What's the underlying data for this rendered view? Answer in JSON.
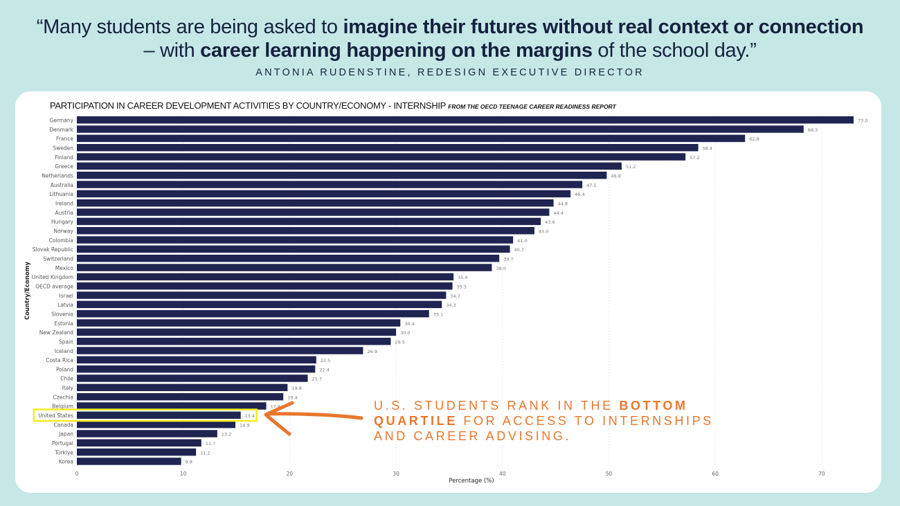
{
  "quote": {
    "open_mark": "“",
    "part1": "Many students are being asked to ",
    "bold1": "imagine their futures without real context or connection",
    "part2": " – with ",
    "bold2": "career learning happening on the margins",
    "part3": " of the school day.”"
  },
  "attribution": "ANTONIA RUDENSTINE, REDESIGN EXECUTIVE DIRECTOR",
  "chart_header": {
    "title": "PARTICIPATION IN CAREER DEVELOPMENT ACTIVITIES BY COUNTRY/ECONOMY - INTERNSHIP",
    "source": "FROM THE OECD TEENAGE CAREER READINESS REPORT"
  },
  "callout": {
    "line1_normal": "U.S. STUDENTS RANK IN THE ",
    "line1_bold": "BOTTOM",
    "line2_bold": "QUARTILE",
    "line2_normal": " FOR ACCESS TO INTERNSHIPS",
    "line3": "AND CAREER ADVISING."
  },
  "colors": {
    "bar": "#1f2550",
    "highlight_box": "#f2ec1f",
    "callout": "#e8772e",
    "background": "#c5e8e7"
  },
  "chart_data": {
    "type": "bar",
    "orientation": "horizontal",
    "title": "PARTICIPATION IN CAREER DEVELOPMENT ACTIVITIES BY COUNTRY/ECONOMY - INTERNSHIP",
    "subtitle": "FROM THE OECD TEENAGE CAREER READINESS REPORT",
    "xlabel": "Percentage (%)",
    "ylabel": "Country/Economy",
    "xlim": [
      0,
      75
    ],
    "xticks": [
      0,
      10,
      20,
      30,
      40,
      50,
      60,
      70
    ],
    "grid": "vertical-dotted",
    "highlight": "United States",
    "categories": [
      "Germany",
      "Denmark",
      "France",
      "Sweden",
      "Finland",
      "Greece",
      "Netherlands",
      "Australia",
      "Lithuania",
      "Ireland",
      "Austria",
      "Hungary",
      "Norway",
      "Colombia",
      "Slovak Republic",
      "Switzerland",
      "Mexico",
      "United Kingdom",
      "OECD average",
      "Israel",
      "Latvia",
      "Slovenia",
      "Estonia",
      "New Zealand",
      "Spain",
      "Iceland",
      "Costa Rica",
      "Poland",
      "Chile",
      "Italy",
      "Czechia",
      "Belgium",
      "United States",
      "Canada",
      "Japan",
      "Portugal",
      "Türkiye",
      "Korea"
    ],
    "values": [
      73.0,
      68.3,
      62.8,
      58.4,
      57.2,
      51.2,
      49.8,
      47.5,
      46.4,
      44.8,
      44.4,
      43.6,
      43.0,
      41.0,
      40.7,
      39.7,
      39.0,
      35.4,
      35.3,
      34.7,
      34.3,
      33.1,
      30.4,
      30.0,
      29.5,
      26.9,
      22.5,
      22.4,
      21.7,
      19.8,
      19.4,
      17.8,
      15.4,
      14.9,
      13.2,
      11.7,
      11.2,
      9.8
    ],
    "labels": [
      "73.0",
      "68.3",
      "62.8",
      "58.4",
      "57.2",
      "51.2",
      "49.8",
      "47.5",
      "46.4",
      "44.8",
      "44.4",
      "43.6",
      "43.0",
      "41.0",
      "40.7",
      "39.7",
      "39.0",
      "35.4",
      "35.3",
      "34.7",
      "34.3",
      "33.1",
      "30.4",
      "30.0",
      "29.5",
      "26.9",
      "22.5",
      "22.4",
      "21.7",
      "19.8",
      "19.4",
      "17.8",
      "15.4",
      "14.9",
      "13.2",
      "11.7",
      "11.2",
      "9.8"
    ]
  }
}
